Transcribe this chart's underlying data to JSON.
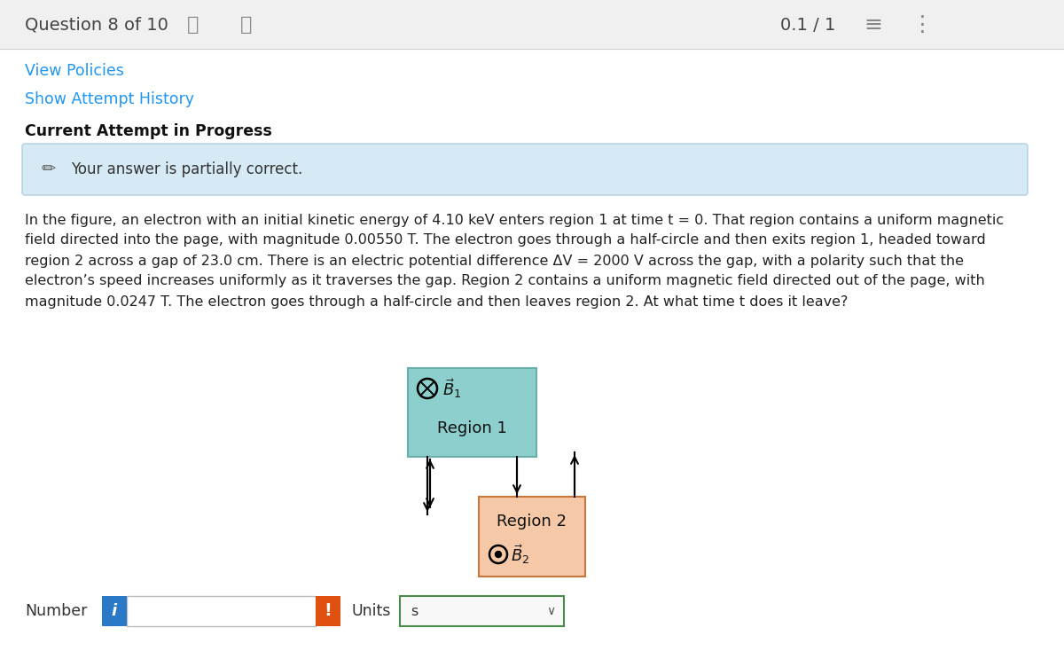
{
  "bg_color": "#f0f0f0",
  "white_bg": "#ffffff",
  "header_text": "Question 8 of 10",
  "header_score": "0.1 / 1",
  "nav_prev": "〈",
  "nav_next": "〉",
  "link1": "View Policies",
  "link2": "Show Attempt History",
  "bold_text": "Current Attempt in Progress",
  "alert_bg": "#d6eaf5",
  "alert_border": "#b0cfe0",
  "alert_text": "Your answer is partially correct.",
  "body_line1": "In the figure, an electron with an initial kinetic energy of 4.10 keV enters region 1 at time t = 0. That region contains a uniform magnetic",
  "body_line2": "field directed into the page, with magnitude 0.00550 T. The electron goes through a half-circle and then exits region 1, headed toward",
  "body_line3": "region 2 across a gap of 23.0 cm. There is an electric potential difference ΔV = 2000 V across the gap, with a polarity such that the",
  "body_line4": "electron’s speed increases uniformly as it traverses the gap. Region 2 contains a uniform magnetic field directed out of the page, with",
  "body_line5": "magnitude 0.0247 T. The electron goes through a half-circle and then leaves region 2. At what time t does it leave?",
  "region1_color": "#8ccfcc",
  "region1_border": "#6aaeab",
  "region2_color": "#f5c8a8",
  "region2_border": "#c8783a",
  "number_label": "Number",
  "units_label": "Units",
  "units_value": "s",
  "info_btn_color": "#2979c8",
  "alert_btn_color": "#e05010",
  "input_border": "#bbbbbb",
  "units_border": "#4a8a4a",
  "link_color": "#2196f3",
  "body_color": "#222222",
  "header_color": "#444444"
}
